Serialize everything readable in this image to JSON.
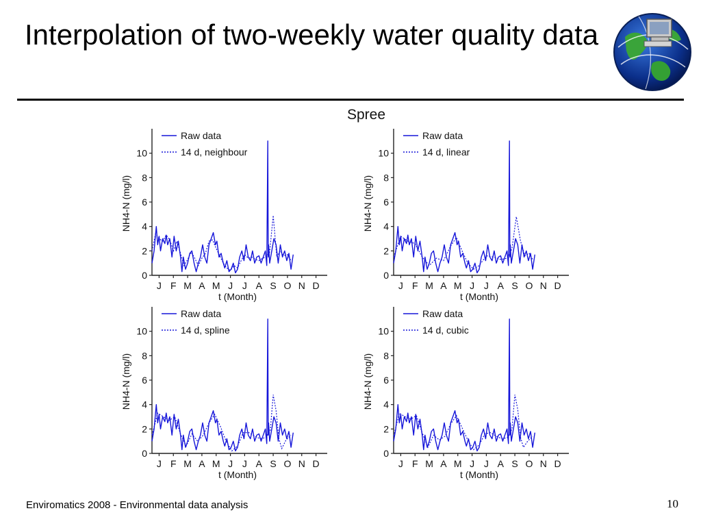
{
  "slide": {
    "title": "Interpolation of two-weekly water quality data",
    "footer": "Enviromatics 2008 - Environmental data analysis",
    "page_number": "10",
    "logo_icon": "globe-computer-icon"
  },
  "colors": {
    "raw": "#1515d9",
    "interp": "#1515d9",
    "axis": "#222222",
    "text": "#111111"
  },
  "chart_data": {
    "figure_title": "Spree",
    "ylabel": "NH4-N (mg/l)",
    "xlabel": "t (Month)",
    "months": [
      "J",
      "F",
      "M",
      "A",
      "M",
      "J",
      "J",
      "A",
      "S",
      "O",
      "N",
      "D"
    ],
    "yticks": [
      0,
      2,
      4,
      6,
      8,
      10
    ],
    "xlim": [
      0,
      12
    ],
    "ylim": [
      0,
      12
    ],
    "type": "line",
    "raw_series": {
      "name": "Raw data",
      "x": [
        0.0,
        0.15,
        0.3,
        0.4,
        0.5,
        0.6,
        0.75,
        0.9,
        1.0,
        1.1,
        1.25,
        1.4,
        1.55,
        1.7,
        1.85,
        2.0,
        2.1,
        2.2,
        2.35,
        2.5,
        2.65,
        2.8,
        2.95,
        3.1,
        3.25,
        3.4,
        3.55,
        3.7,
        3.85,
        4.0,
        4.15,
        4.3,
        4.45,
        4.55,
        4.7,
        4.85,
        5.0,
        5.1,
        5.25,
        5.4,
        5.55,
        5.7,
        5.85,
        6.0,
        6.15,
        6.3,
        6.45,
        6.6,
        6.75,
        6.9,
        7.05,
        7.2,
        7.35,
        7.5,
        7.65,
        7.8,
        7.95,
        8.05,
        8.12,
        8.15,
        8.18,
        8.25,
        8.4,
        8.55,
        8.7,
        8.85,
        9.0,
        9.15,
        9.3,
        9.45,
        9.6,
        9.75,
        9.9
      ],
      "y": [
        1.0,
        2.0,
        4.0,
        2.5,
        3.2,
        2.0,
        3.0,
        2.6,
        3.3,
        2.5,
        3.0,
        1.5,
        3.2,
        2.0,
        2.8,
        1.5,
        0.3,
        1.5,
        0.5,
        1.0,
        1.8,
        2.0,
        1.0,
        0.3,
        1.0,
        1.5,
        2.5,
        1.5,
        1.0,
        2.5,
        3.0,
        3.5,
        2.5,
        2.8,
        1.5,
        1.8,
        1.0,
        0.6,
        1.2,
        0.3,
        0.5,
        1.0,
        0.2,
        0.5,
        1.5,
        2.0,
        1.2,
        2.5,
        1.5,
        1.2,
        2.0,
        1.0,
        1.5,
        1.6,
        1.0,
        1.5,
        2.0,
        0.8,
        11.0,
        1.5,
        2.5,
        1.0,
        2.0,
        3.0,
        2.5,
        1.0,
        2.5,
        1.5,
        2.0,
        1.2,
        1.8,
        0.5,
        1.7
      ]
    },
    "panels": [
      {
        "legend_raw": "Raw data",
        "legend_interp": "14 d, neighbour",
        "interp_series": {
          "name": "14 d, neighbour",
          "x": [
            0.0,
            0.25,
            0.5,
            0.75,
            1.0,
            1.25,
            1.5,
            1.75,
            2.0,
            2.25,
            2.5,
            2.75,
            3.0,
            3.25,
            3.5,
            3.75,
            4.0,
            4.25,
            4.5,
            4.75,
            5.0,
            5.25,
            5.5,
            5.75,
            6.0,
            6.25,
            6.5,
            6.75,
            7.0,
            7.25,
            7.5,
            7.75,
            8.0,
            8.25,
            8.5,
            8.75,
            9.0,
            9.25,
            9.5,
            9.75
          ],
          "y": [
            2.0,
            3.4,
            3.0,
            2.8,
            3.3,
            2.9,
            2.0,
            2.8,
            1.8,
            0.8,
            1.3,
            1.9,
            1.4,
            0.8,
            1.4,
            1.8,
            2.8,
            2.9,
            2.2,
            1.6,
            1.0,
            0.6,
            0.4,
            0.8,
            0.6,
            1.2,
            1.7,
            1.4,
            1.5,
            1.3,
            1.2,
            1.4,
            1.5,
            1.9,
            4.9,
            1.5,
            2.0,
            1.6,
            1.7,
            1.2
          ]
        }
      },
      {
        "legend_raw": "Raw data",
        "legend_interp": "14 d, linear",
        "interp_series": {
          "name": "14 d, linear",
          "x": [
            0.0,
            0.5,
            1.0,
            1.5,
            2.0,
            2.5,
            3.0,
            3.5,
            4.0,
            4.4,
            4.8,
            5.2,
            5.6,
            6.0,
            6.5,
            7.0,
            7.5,
            8.0,
            8.3,
            8.6,
            8.9,
            9.2,
            9.5,
            9.75
          ],
          "y": [
            1.5,
            3.2,
            2.8,
            2.6,
            1.5,
            0.8,
            1.4,
            1.2,
            2.4,
            3.1,
            2.0,
            1.0,
            0.5,
            0.8,
            1.6,
            1.5,
            1.3,
            1.4,
            2.2,
            4.8,
            2.8,
            1.6,
            1.8,
            1.3
          ]
        }
      },
      {
        "legend_raw": "Raw data",
        "legend_interp": "14 d, spline",
        "interp_series": {
          "name": "14 d, spline",
          "x": [
            0.0,
            0.4,
            0.8,
            1.2,
            1.6,
            2.0,
            2.4,
            2.8,
            3.2,
            3.6,
            4.0,
            4.4,
            4.8,
            5.2,
            5.6,
            6.0,
            6.4,
            6.8,
            7.2,
            7.6,
            8.0,
            8.3,
            8.5,
            8.7,
            8.9,
            9.1,
            9.4,
            9.75
          ],
          "y": [
            1.5,
            3.3,
            3.0,
            2.7,
            3.0,
            1.6,
            0.6,
            1.6,
            1.0,
            1.5,
            2.5,
            3.2,
            2.2,
            1.0,
            0.2,
            0.6,
            1.7,
            1.7,
            1.4,
            1.2,
            1.3,
            1.9,
            4.8,
            3.5,
            1.2,
            0.4,
            1.1,
            1.5
          ]
        }
      },
      {
        "legend_raw": "Raw data",
        "legend_interp": "14 d, cubic",
        "interp_series": {
          "name": "14 d, cubic",
          "x": [
            0.0,
            0.4,
            0.8,
            1.2,
            1.6,
            2.0,
            2.4,
            2.8,
            3.2,
            3.6,
            4.0,
            4.4,
            4.8,
            5.2,
            5.6,
            6.0,
            6.4,
            6.8,
            7.2,
            7.6,
            8.0,
            8.3,
            8.5,
            8.7,
            8.9,
            9.1,
            9.4,
            9.75
          ],
          "y": [
            1.4,
            3.3,
            3.0,
            2.8,
            3.1,
            1.7,
            0.5,
            1.5,
            1.1,
            1.4,
            2.4,
            3.1,
            2.1,
            1.1,
            0.3,
            0.7,
            1.6,
            1.7,
            1.4,
            1.2,
            1.3,
            2.0,
            4.8,
            3.6,
            1.3,
            0.5,
            1.0,
            1.4
          ]
        }
      }
    ]
  }
}
